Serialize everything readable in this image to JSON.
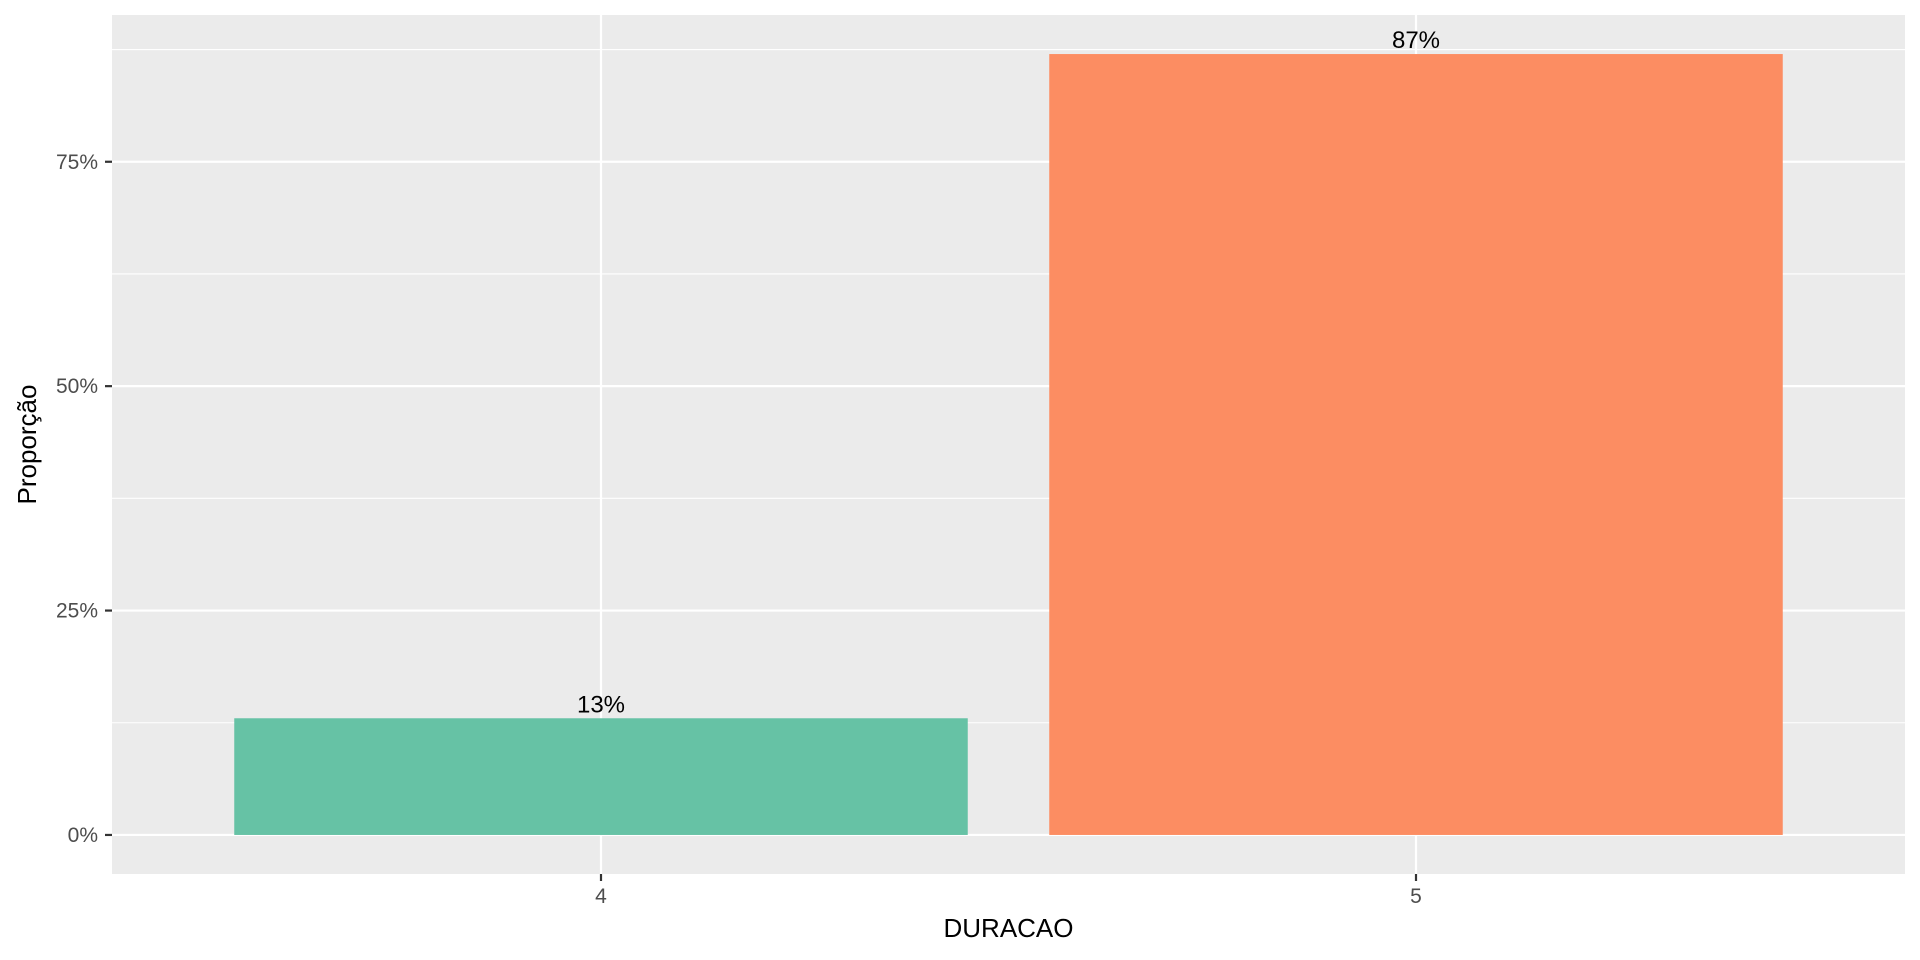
{
  "chart_data": {
    "type": "bar",
    "categories": [
      "4",
      "5"
    ],
    "values": [
      0.13,
      0.87
    ],
    "data_labels": [
      "13%",
      "87%"
    ],
    "bar_colors": [
      "#66C2A5",
      "#FC8D62"
    ],
    "title": "",
    "xlabel": "DURACAO",
    "ylabel": "Proporção",
    "ylim": [
      -0.0435,
      0.9135
    ],
    "y_ticks": [
      0,
      0.25,
      0.5,
      0.75
    ],
    "y_tick_labels": [
      "0%",
      "25%",
      "50%",
      "75%"
    ],
    "y_minor_ticks": [
      0.125,
      0.375,
      0.625,
      0.875
    ],
    "grid": true,
    "legend": "none",
    "panel_background": "#EBEBEB",
    "grid_color": "#FFFFFF"
  }
}
